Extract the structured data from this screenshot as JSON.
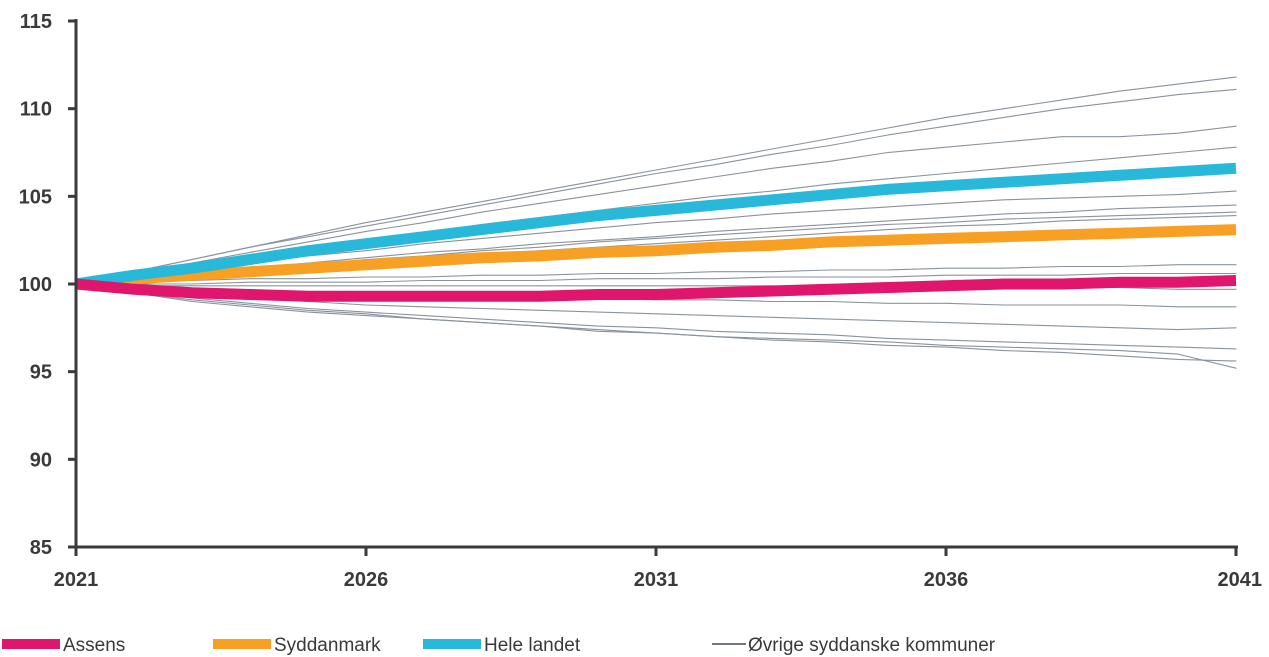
{
  "chart_data": {
    "type": "line",
    "x": [
      2021,
      2022,
      2023,
      2024,
      2025,
      2026,
      2027,
      2028,
      2029,
      2030,
      2031,
      2032,
      2033,
      2034,
      2035,
      2036,
      2037,
      2038,
      2039,
      2040,
      2041
    ],
    "xlim": [
      2021,
      2041
    ],
    "ylim": [
      85,
      115
    ],
    "x_ticks": [
      2021,
      2026,
      2031,
      2036,
      2041
    ],
    "y_ticks": [
      85,
      90,
      95,
      100,
      105,
      110,
      115
    ],
    "grid": false,
    "legend_position": "bottom",
    "series": [
      {
        "name": "Assens",
        "color": "#e0156c",
        "highlight": true,
        "values": [
          100,
          99.7,
          99.5,
          99.4,
          99.3,
          99.3,
          99.3,
          99.3,
          99.3,
          99.4,
          99.4,
          99.5,
          99.6,
          99.7,
          99.8,
          99.9,
          100.0,
          100.0,
          100.1,
          100.1,
          100.2
        ]
      },
      {
        "name": "Syddanmark",
        "color": "#f7a023",
        "highlight": true,
        "values": [
          100,
          100.3,
          100.5,
          100.7,
          100.9,
          101.1,
          101.3,
          101.5,
          101.6,
          101.8,
          101.9,
          102.1,
          102.2,
          102.4,
          102.5,
          102.6,
          102.7,
          102.8,
          102.9,
          103.0,
          103.1
        ]
      },
      {
        "name": "Hele landet",
        "color": "#28b8da",
        "highlight": true,
        "values": [
          100,
          100.5,
          100.9,
          101.4,
          101.9,
          102.3,
          102.7,
          103.1,
          103.5,
          103.9,
          104.2,
          104.5,
          104.8,
          105.1,
          105.4,
          105.6,
          105.8,
          106.0,
          106.2,
          106.4,
          106.6
        ]
      },
      {
        "name": "Øvrige syddanske kommuner",
        "color": "#8a939c",
        "highlight": false,
        "values": [
          100,
          100.7,
          101.4,
          102.1,
          102.8,
          103.5,
          104.1,
          104.7,
          105.3,
          105.9,
          106.5,
          107.1,
          107.7,
          108.3,
          108.9,
          109.5,
          110.0,
          110.5,
          111.0,
          111.4,
          111.8
        ]
      },
      {
        "color": "#8a939c",
        "highlight": false,
        "values": [
          100,
          100.7,
          101.4,
          102.1,
          102.7,
          103.3,
          103.9,
          104.5,
          105.1,
          105.7,
          106.3,
          106.8,
          107.4,
          107.9,
          108.5,
          109.0,
          109.5,
          110.0,
          110.4,
          110.8,
          111.1
        ]
      },
      {
        "color": "#8a939c",
        "highlight": false,
        "values": [
          100,
          100.6,
          101.2,
          101.8,
          102.4,
          103.0,
          103.5,
          104.1,
          104.6,
          105.1,
          105.6,
          106.1,
          106.6,
          107.0,
          107.5,
          107.8,
          108.1,
          108.4,
          108.4,
          108.6,
          109.0
        ]
      },
      {
        "color": "#8a939c",
        "highlight": false,
        "values": [
          100,
          100.5,
          101.0,
          101.5,
          102.0,
          102.5,
          102.9,
          103.4,
          103.8,
          104.2,
          104.6,
          105.0,
          105.3,
          105.7,
          106.0,
          106.3,
          106.6,
          106.9,
          107.2,
          107.5,
          107.8
        ]
      },
      {
        "color": "#8a939c",
        "highlight": false,
        "values": [
          100,
          100.4,
          100.8,
          101.2,
          101.6,
          101.9,
          102.3,
          102.6,
          102.9,
          103.2,
          103.5,
          103.7,
          104.0,
          104.2,
          104.4,
          104.6,
          104.8,
          104.9,
          105.0,
          105.1,
          105.3
        ]
      },
      {
        "color": "#8a939c",
        "highlight": false,
        "values": [
          100,
          100.3,
          100.6,
          100.9,
          101.2,
          101.5,
          101.8,
          102.0,
          102.3,
          102.5,
          102.7,
          103.0,
          103.2,
          103.4,
          103.6,
          103.8,
          104.0,
          104.1,
          104.3,
          104.4,
          104.5
        ]
      },
      {
        "color": "#8a939c",
        "highlight": false,
        "values": [
          100,
          100.3,
          100.6,
          100.9,
          101.1,
          101.4,
          101.6,
          101.9,
          102.1,
          102.4,
          102.6,
          102.8,
          103.0,
          103.2,
          103.4,
          103.5,
          103.7,
          103.8,
          103.9,
          104.0,
          104.1
        ]
      },
      {
        "color": "#8a939c",
        "highlight": false,
        "values": [
          100,
          100.3,
          100.5,
          100.8,
          101.0,
          101.3,
          101.5,
          101.7,
          101.9,
          102.1,
          102.3,
          102.5,
          102.7,
          102.9,
          103.1,
          103.3,
          103.4,
          103.6,
          103.7,
          103.8,
          103.9
        ]
      },
      {
        "color": "#8a939c",
        "highlight": false,
        "values": [
          100,
          100.1,
          100.2,
          100.3,
          100.3,
          100.4,
          100.4,
          100.5,
          100.5,
          100.6,
          100.6,
          100.7,
          100.7,
          100.8,
          100.8,
          100.9,
          100.9,
          101.0,
          101.0,
          101.1,
          101.1
        ]
      },
      {
        "color": "#8a939c",
        "highlight": false,
        "values": [
          100,
          100.0,
          100.0,
          100.1,
          100.1,
          100.1,
          100.2,
          100.2,
          100.2,
          100.3,
          100.3,
          100.3,
          100.4,
          100.4,
          100.4,
          100.5,
          100.5,
          100.5,
          100.6,
          100.6,
          100.6
        ]
      },
      {
        "color": "#8a939c",
        "highlight": false,
        "values": [
          100,
          99.9,
          99.9,
          99.9,
          99.9,
          99.9,
          99.9,
          99.9,
          99.9,
          99.9,
          99.9,
          99.9,
          99.9,
          99.8,
          99.8,
          99.8,
          99.8,
          99.8,
          99.8,
          99.7,
          99.7
        ]
      },
      {
        "color": "#8a939c",
        "highlight": false,
        "values": [
          100,
          99.8,
          99.6,
          99.5,
          99.4,
          99.3,
          99.3,
          99.2,
          99.2,
          99.2,
          99.1,
          99.1,
          99.0,
          99.0,
          98.9,
          98.9,
          98.8,
          98.8,
          98.8,
          98.7,
          98.7
        ]
      },
      {
        "color": "#8a939c",
        "highlight": false,
        "values": [
          100,
          99.7,
          99.4,
          99.2,
          99.0,
          98.8,
          98.7,
          98.6,
          98.5,
          98.4,
          98.3,
          98.2,
          98.1,
          98.0,
          97.9,
          97.8,
          97.7,
          97.6,
          97.5,
          97.4,
          97.5
        ]
      },
      {
        "color": "#8a939c",
        "highlight": false,
        "values": [
          100,
          99.6,
          99.2,
          98.9,
          98.6,
          98.4,
          98.2,
          98.0,
          97.8,
          97.6,
          97.5,
          97.3,
          97.2,
          97.1,
          96.9,
          96.8,
          96.7,
          96.6,
          96.5,
          96.4,
          96.3
        ]
      },
      {
        "color": "#8a939c",
        "highlight": false,
        "values": [
          100,
          99.5,
          99.1,
          98.8,
          98.5,
          98.3,
          98.0,
          97.8,
          97.6,
          97.4,
          97.2,
          97.0,
          96.8,
          96.7,
          96.5,
          96.4,
          96.2,
          96.1,
          95.9,
          95.7,
          95.6
        ]
      },
      {
        "color": "#8a939c",
        "highlight": false,
        "values": [
          100,
          99.5,
          99.0,
          98.7,
          98.4,
          98.2,
          98.0,
          97.8,
          97.6,
          97.3,
          97.2,
          97.0,
          96.9,
          96.8,
          96.7,
          96.5,
          96.4,
          96.3,
          96.2,
          96.0,
          95.2
        ]
      }
    ],
    "legend": [
      {
        "label": "Assens",
        "style": "thick",
        "color": "#e0156c"
      },
      {
        "label": "Syddanmark",
        "style": "thick",
        "color": "#f7a023"
      },
      {
        "label": "Hele landet",
        "style": "thick",
        "color": "#28b8da"
      },
      {
        "label": "Øvrige syddanske kommuner",
        "style": "thin",
        "color": "#6f7880"
      }
    ],
    "axis_color": "#3a3a3a"
  }
}
